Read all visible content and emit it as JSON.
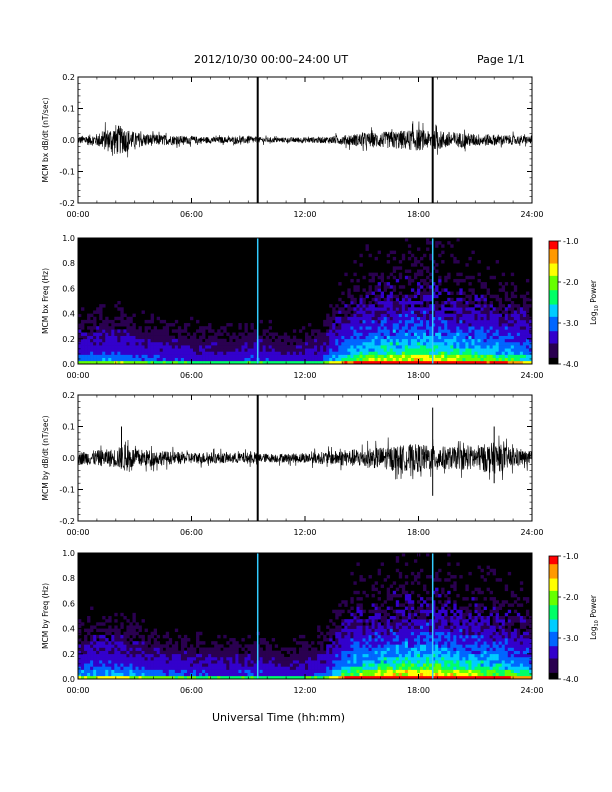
{
  "header": {
    "title": "2012/10/30   00:00–24:00 UT",
    "page": "Page 1/1"
  },
  "x_axis_title": "Universal Time (hh:mm)",
  "colors": {
    "trace": "#000000",
    "spectrogram_background": "#000000"
  },
  "colorbar": {
    "label_main": "Log",
    "label_sub": "10",
    "label_tail": " Power",
    "ticks": [
      "-1.0",
      "-2.0",
      "-3.0",
      "-4.0"
    ],
    "range": [
      -4.0,
      -1.0
    ],
    "colormap": [
      "#000000",
      "#2a0050",
      "#3300cc",
      "#0066ff",
      "#00ccff",
      "#00ff66",
      "#66ff00",
      "#ffff00",
      "#ff9900",
      "#ff0000"
    ]
  },
  "chart_data": [
    {
      "type": "line",
      "id": "bx-dbdt",
      "ylabel": "MCM bx dB/dt (nT/sec)",
      "x_ticks": [
        "00:00",
        "06:00",
        "12:00",
        "18:00",
        "24:00"
      ],
      "xlim": [
        0,
        24
      ],
      "ylim": [
        -0.2,
        0.2
      ],
      "y_ticks": [
        "0.2",
        "0.1",
        "0.0",
        "-0.1",
        "-0.2"
      ],
      "envelope": {
        "x_hours": [
          0,
          1,
          1.5,
          2,
          2.5,
          3,
          4,
          5,
          6,
          7,
          8,
          9,
          9.5,
          10,
          11,
          12,
          13,
          14,
          15,
          16,
          17,
          18,
          18.5,
          19,
          20,
          21,
          22,
          23,
          24
        ],
        "amplitude": [
          0.012,
          0.02,
          0.035,
          0.05,
          0.04,
          0.025,
          0.018,
          0.015,
          0.012,
          0.01,
          0.01,
          0.012,
          0.01,
          0.008,
          0.008,
          0.009,
          0.01,
          0.015,
          0.022,
          0.025,
          0.03,
          0.035,
          0.028,
          0.03,
          0.025,
          0.02,
          0.018,
          0.015,
          0.012
        ]
      },
      "spikes": [
        {
          "x": 9.5,
          "ymin": -0.2,
          "ymax": 0.2
        },
        {
          "x": 18.75,
          "ymin": -0.2,
          "ymax": 0.2
        }
      ]
    },
    {
      "type": "heatmap",
      "id": "bx-freq",
      "ylabel": "MCM bx Freq (Hz)",
      "x_ticks": [
        "00:00",
        "06:00",
        "12:00",
        "18:00",
        "24:00"
      ],
      "xlim": [
        0,
        24
      ],
      "ylim": [
        0.0,
        1.0
      ],
      "y_ticks": [
        "1.0",
        "0.8",
        "0.6",
        "0.4",
        "0.2",
        "0.0"
      ],
      "activity_hours": [
        0,
        2,
        4,
        6,
        8,
        9.5,
        11,
        13,
        14,
        15,
        16,
        17,
        18,
        19,
        20,
        21,
        22,
        23,
        24
      ],
      "activity_level": [
        0.35,
        0.4,
        0.3,
        0.28,
        0.25,
        0.3,
        0.22,
        0.3,
        0.55,
        0.7,
        0.75,
        0.8,
        0.85,
        0.8,
        0.75,
        0.7,
        0.65,
        0.6,
        0.5
      ],
      "vertical_lines": [
        9.5,
        18.75
      ]
    },
    {
      "type": "line",
      "id": "by-dbdt",
      "ylabel": "MCM by dB/dt (nT/sec)",
      "x_ticks": [
        "00:00",
        "06:00",
        "12:00",
        "18:00",
        "24:00"
      ],
      "xlim": [
        0,
        24
      ],
      "ylim": [
        -0.2,
        0.2
      ],
      "y_ticks": [
        "0.2",
        "0.1",
        "0.0",
        "-0.1",
        "-0.2"
      ],
      "envelope": {
        "x_hours": [
          0,
          1,
          2,
          2.5,
          3,
          4,
          5,
          6,
          7,
          8,
          9,
          9.5,
          10,
          11,
          12,
          13,
          14,
          15,
          16,
          17,
          18,
          18.5,
          19,
          20,
          21,
          22,
          23,
          24
        ],
        "amplitude": [
          0.02,
          0.025,
          0.03,
          0.045,
          0.03,
          0.025,
          0.02,
          0.018,
          0.018,
          0.016,
          0.018,
          0.015,
          0.014,
          0.014,
          0.016,
          0.02,
          0.025,
          0.03,
          0.035,
          0.04,
          0.045,
          0.04,
          0.038,
          0.035,
          0.04,
          0.05,
          0.03,
          0.02
        ]
      },
      "spikes": [
        {
          "x": 9.5,
          "ymin": -0.2,
          "ymax": 0.2
        },
        {
          "x": 18.75,
          "ymin": -0.12,
          "ymax": 0.16
        },
        {
          "x": 2.3,
          "ymin": -0.03,
          "ymax": 0.1
        },
        {
          "x": 22.0,
          "ymin": -0.08,
          "ymax": 0.1
        }
      ]
    },
    {
      "type": "heatmap",
      "id": "by-freq",
      "ylabel": "MCM by Freq (Hz)",
      "x_ticks": [
        "00:00",
        "06:00",
        "12:00",
        "18:00",
        "24:00"
      ],
      "xlim": [
        0,
        24
      ],
      "ylim": [
        0.0,
        1.0
      ],
      "y_ticks": [
        "1.0",
        "0.8",
        "0.6",
        "0.4",
        "0.2",
        "0.0"
      ],
      "activity_hours": [
        0,
        2,
        4,
        6,
        8,
        9.5,
        11,
        13,
        14,
        15,
        16,
        17,
        18,
        19,
        20,
        21,
        22,
        23,
        24
      ],
      "activity_level": [
        0.4,
        0.45,
        0.35,
        0.3,
        0.28,
        0.3,
        0.25,
        0.32,
        0.6,
        0.75,
        0.8,
        0.85,
        0.88,
        0.85,
        0.8,
        0.75,
        0.7,
        0.65,
        0.55
      ],
      "vertical_lines": [
        9.5,
        18.75
      ]
    }
  ]
}
